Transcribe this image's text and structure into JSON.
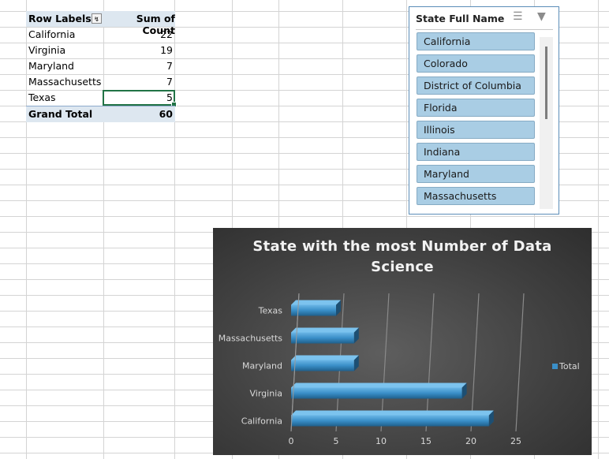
{
  "pivot": {
    "header_label": "Row Labels",
    "header_value": "Sum of Count",
    "rows": [
      {
        "label": "California",
        "value": "22"
      },
      {
        "label": "Virginia",
        "value": "19"
      },
      {
        "label": "Maryland",
        "value": "7"
      },
      {
        "label": "Massachusetts",
        "value": "7"
      },
      {
        "label": "Texas",
        "value": "5"
      }
    ],
    "total_label": "Grand Total",
    "total_value": "60"
  },
  "slicer": {
    "title": "State Full Name",
    "icons": [
      "multi-select-icon",
      "clear-filter-icon"
    ],
    "items": [
      "California",
      "Colorado",
      "District of Columbia",
      "Florida",
      "Illinois",
      "Indiana",
      "Maryland",
      "Massachusetts"
    ],
    "item_color": "#a9cde4"
  },
  "chart_data": {
    "type": "bar",
    "orientation": "horizontal",
    "title": "State with the most Number of Data Science",
    "categories": [
      "California",
      "Virginia",
      "Maryland",
      "Massachusetts",
      "Texas"
    ],
    "series": [
      {
        "name": "Total",
        "values": [
          22,
          19,
          7,
          7,
          5
        ],
        "color": "#3a8fc8"
      }
    ],
    "xlim": [
      0,
      25
    ],
    "xticks": [
      "0",
      "5",
      "10",
      "15",
      "20",
      "25"
    ],
    "grid": true,
    "legend": "right",
    "background": "#404040"
  }
}
